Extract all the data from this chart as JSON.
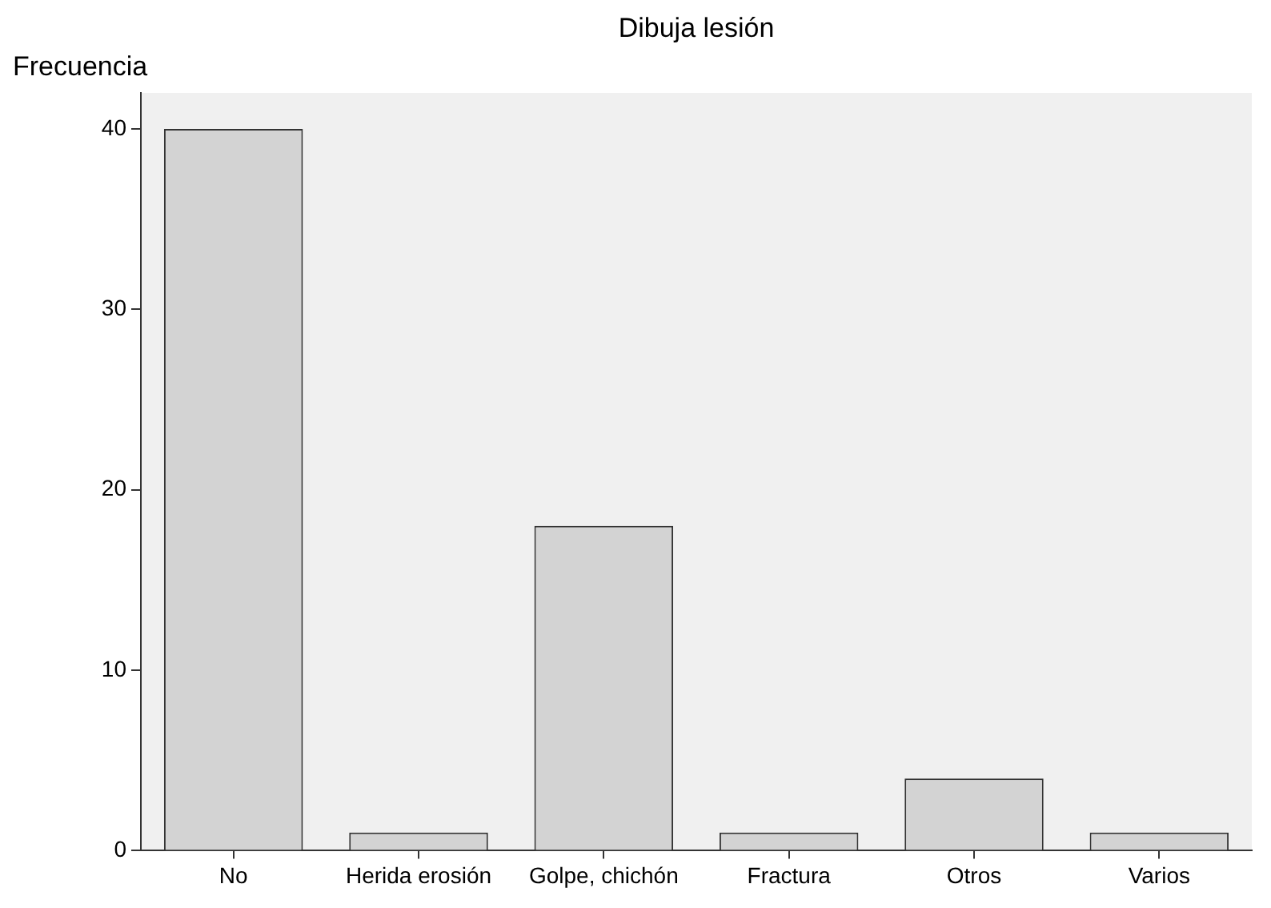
{
  "chart_data": {
    "type": "bar",
    "title": "Dibuja lesión",
    "ylabel": "Frecuencia",
    "categories": [
      "No",
      "Herida erosión",
      "Golpe, chichón",
      "Fractura",
      "Otros",
      "Varios"
    ],
    "values": [
      40,
      1,
      18,
      1,
      4,
      1
    ],
    "color": "#d3d3d3",
    "ylim": [
      0,
      42
    ],
    "yticks": [
      0,
      10,
      20,
      30,
      40
    ],
    "legend": false
  }
}
